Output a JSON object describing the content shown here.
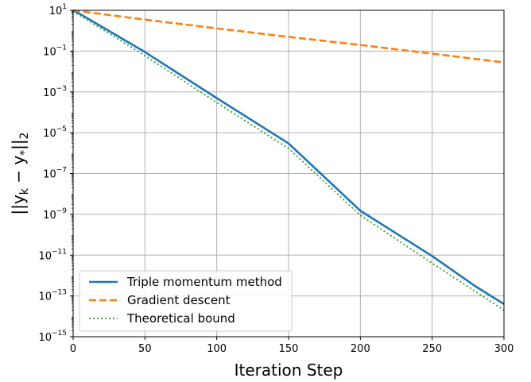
{
  "chart_data": {
    "type": "line",
    "xlabel": "Iteration Step",
    "ylabel_parts": {
      "prefix": "||y",
      "sub1": "k",
      "mid": " − y",
      "sub2": "*",
      "suffix": "||",
      "sub3": "2"
    },
    "xlim": [
      0,
      300
    ],
    "ylim_exponent": [
      -15,
      1
    ],
    "yscale": "log",
    "grid": true,
    "legend_placement": "lower-left",
    "x_ticks": [
      "0",
      "50",
      "100",
      "150",
      "200",
      "250",
      "300"
    ],
    "y_ticks": [
      {
        "base": "10",
        "exp": "1"
      },
      {
        "base": "10",
        "exp": "−1"
      },
      {
        "base": "10",
        "exp": "−3"
      },
      {
        "base": "10",
        "exp": "−5"
      },
      {
        "base": "10",
        "exp": "−7"
      },
      {
        "base": "10",
        "exp": "−9"
      },
      {
        "base": "10",
        "exp": "−11"
      },
      {
        "base": "10",
        "exp": "−13"
      },
      {
        "base": "10",
        "exp": "−15"
      }
    ],
    "series": [
      {
        "name": "Triple momentum method",
        "color": "#1f77b4",
        "style": "solid",
        "x": [
          0,
          5,
          50,
          100,
          150,
          200,
          250,
          280,
          300
        ],
        "y": [
          10,
          6.5,
          0.09,
          0.0005,
          3e-06,
          1.5e-09,
          9e-12,
          3e-13,
          4e-14
        ]
      },
      {
        "name": "Gradient descent",
        "color": "#ff7f0e",
        "style": "dashed",
        "x": [
          0,
          50,
          100,
          150,
          200,
          250,
          300
        ],
        "y": [
          10,
          3.5,
          1.3,
          0.5,
          0.2,
          0.075,
          0.028
        ]
      },
      {
        "name": "Theoretical bound",
        "color": "#2ca02c",
        "style": "dotted",
        "x": [
          0,
          50,
          100,
          150,
          200,
          250,
          300
        ],
        "y": [
          9,
          0.06,
          0.0003,
          1.7e-06,
          9e-10,
          4e-12,
          2e-14
        ]
      }
    ]
  }
}
